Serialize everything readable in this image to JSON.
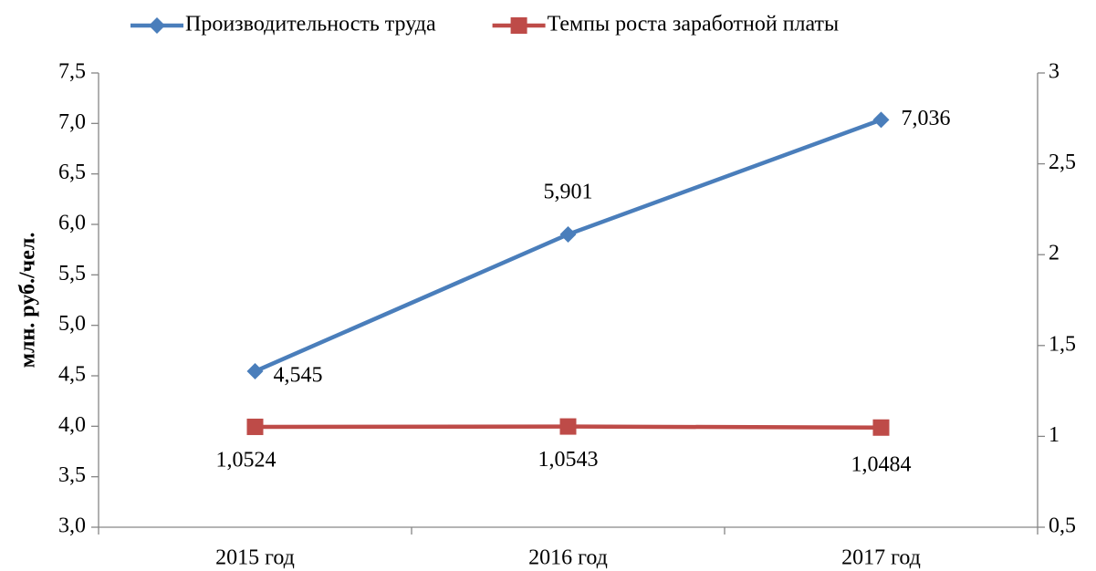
{
  "chart_data": {
    "type": "line",
    "categories": [
      "2015 год",
      "2016 год",
      "2017 год"
    ],
    "y_axis_label": "млн. руб./чел.",
    "series": [
      {
        "name": "Производительность труда",
        "color": "#4a7ebb",
        "marker": "diamond",
        "values": [
          4.545,
          5.901,
          7.036
        ],
        "value_labels": [
          "4,545",
          "5,901",
          "7,036"
        ]
      },
      {
        "name": "Темпы роста заработной платы",
        "color": "#be4b48",
        "marker": "square",
        "axis": "y2",
        "values": [
          1.0524,
          1.0543,
          1.0484
        ],
        "value_labels": [
          "1,0524",
          "1,0543",
          "1,0484"
        ]
      }
    ],
    "ylim": [
      3,
      7.5
    ],
    "yticks": [
      {
        "value": 3,
        "label": "3,0"
      },
      {
        "value": 3.5,
        "label": "3,5"
      },
      {
        "value": 4,
        "label": "4,0"
      },
      {
        "value": 4.5,
        "label": "4,5"
      },
      {
        "value": 5,
        "label": "5,0"
      },
      {
        "value": 5.5,
        "label": "5,5"
      },
      {
        "value": 6,
        "label": "6,0"
      },
      {
        "value": 6.5,
        "label": "6,5"
      },
      {
        "value": 7,
        "label": "7,0"
      },
      {
        "value": 7.5,
        "label": "7,5"
      }
    ],
    "y2lim": [
      0.5,
      3
    ],
    "y2ticks": [
      {
        "value": 0.5,
        "label": "0,5"
      },
      1,
      {
        "value": 1.5,
        "label": "1,5"
      },
      2,
      {
        "value": 2.5,
        "label": "2,5"
      },
      3
    ],
    "grid": false,
    "legend": "top"
  }
}
